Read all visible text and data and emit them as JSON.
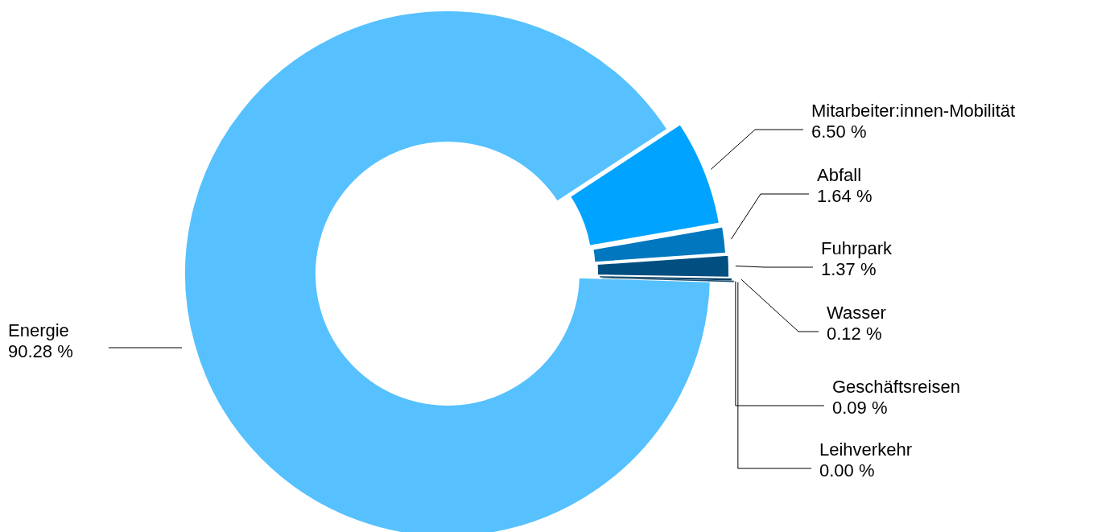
{
  "chart_data": {
    "type": "donut",
    "categories": [
      "Energie",
      "Mitarbeiter:innen-Mobilität",
      "Abfall",
      "Fuhrpark",
      "Wasser",
      "Geschäftsreisen",
      "Leihverkehr"
    ],
    "values": [
      90.28,
      6.5,
      1.64,
      1.37,
      0.12,
      0.09,
      0.0
    ],
    "colors": [
      "#56c1fe",
      "#00a3ff",
      "#0077bf",
      "#004f80",
      "#003d63",
      "#1b4e70",
      "#0a2a40"
    ],
    "data_labels": true,
    "value_labels": [
      "90.28 %",
      "6.50 %",
      "1.64 %",
      "1.37 %",
      "0.12 %",
      "0.09 %",
      "0.00 %"
    ]
  }
}
